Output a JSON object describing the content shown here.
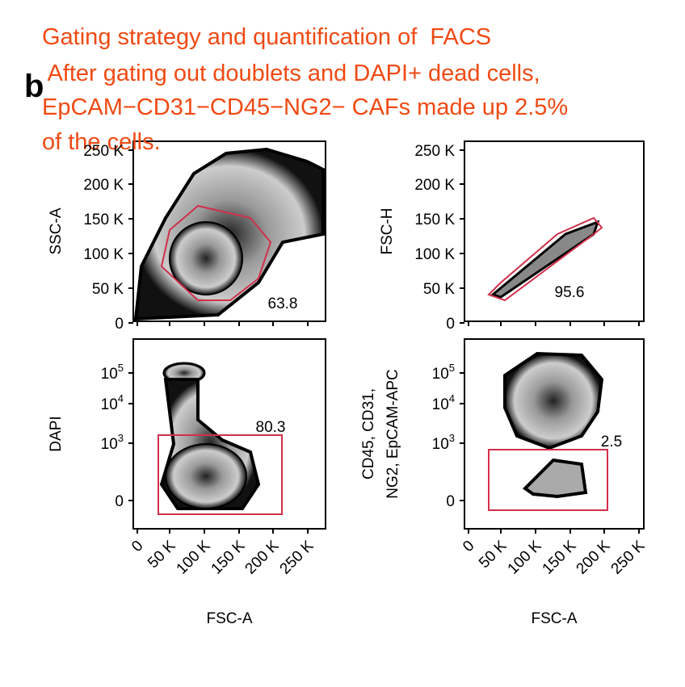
{
  "caption": {
    "lines": [
      "Gating strategy and quantification of  FACS",
      " After gating out doublets and DAPI+ dead cells,",
      "EpCAM−CD31−CD45−NG2− CAFs made up 2.5%",
      "of the cells."
    ]
  },
  "panel_label": "b",
  "panels": [
    {
      "y_label": [
        "SSC-A"
      ],
      "y_ticks": [
        {
          "text": "250 K"
        },
        {
          "text": "200 K"
        },
        {
          "text": "150 K"
        },
        {
          "text": "100 K"
        },
        {
          "text": "50 K"
        },
        {
          "text": "0"
        }
      ],
      "gate_value": "63.8"
    },
    {
      "y_label": [
        "FSC-H"
      ],
      "y_ticks": [
        {
          "text": "250 K"
        },
        {
          "text": "200 K"
        },
        {
          "text": "150 K"
        },
        {
          "text": "100 K"
        },
        {
          "text": "50 K"
        },
        {
          "text": "0"
        }
      ],
      "gate_value": "95.6"
    },
    {
      "y_label": [
        "DAPI"
      ],
      "y_ticks": [
        {
          "text": "10",
          "exp": "5"
        },
        {
          "text": "10",
          "exp": "4"
        },
        {
          "text": "10",
          "exp": "3"
        },
        {
          "text": "0"
        }
      ],
      "gate_value": "80.3",
      "x_ticks": [
        "0",
        "50 K",
        "100 K",
        "150 K",
        "200 K",
        "250 K"
      ],
      "x_label": "FSC-A"
    },
    {
      "y_label": [
        "CD45, CD31,",
        "NG2, EpCAM-APC"
      ],
      "y_ticks": [
        {
          "text": "10",
          "exp": "5"
        },
        {
          "text": "10",
          "exp": "4"
        },
        {
          "text": "10",
          "exp": "3"
        },
        {
          "text": "0"
        }
      ],
      "gate_value": "2.5",
      "x_ticks": [
        "0",
        "50 K",
        "100 K",
        "150 K",
        "200 K",
        "250 K"
      ],
      "x_label": "FSC-A"
    }
  ]
}
